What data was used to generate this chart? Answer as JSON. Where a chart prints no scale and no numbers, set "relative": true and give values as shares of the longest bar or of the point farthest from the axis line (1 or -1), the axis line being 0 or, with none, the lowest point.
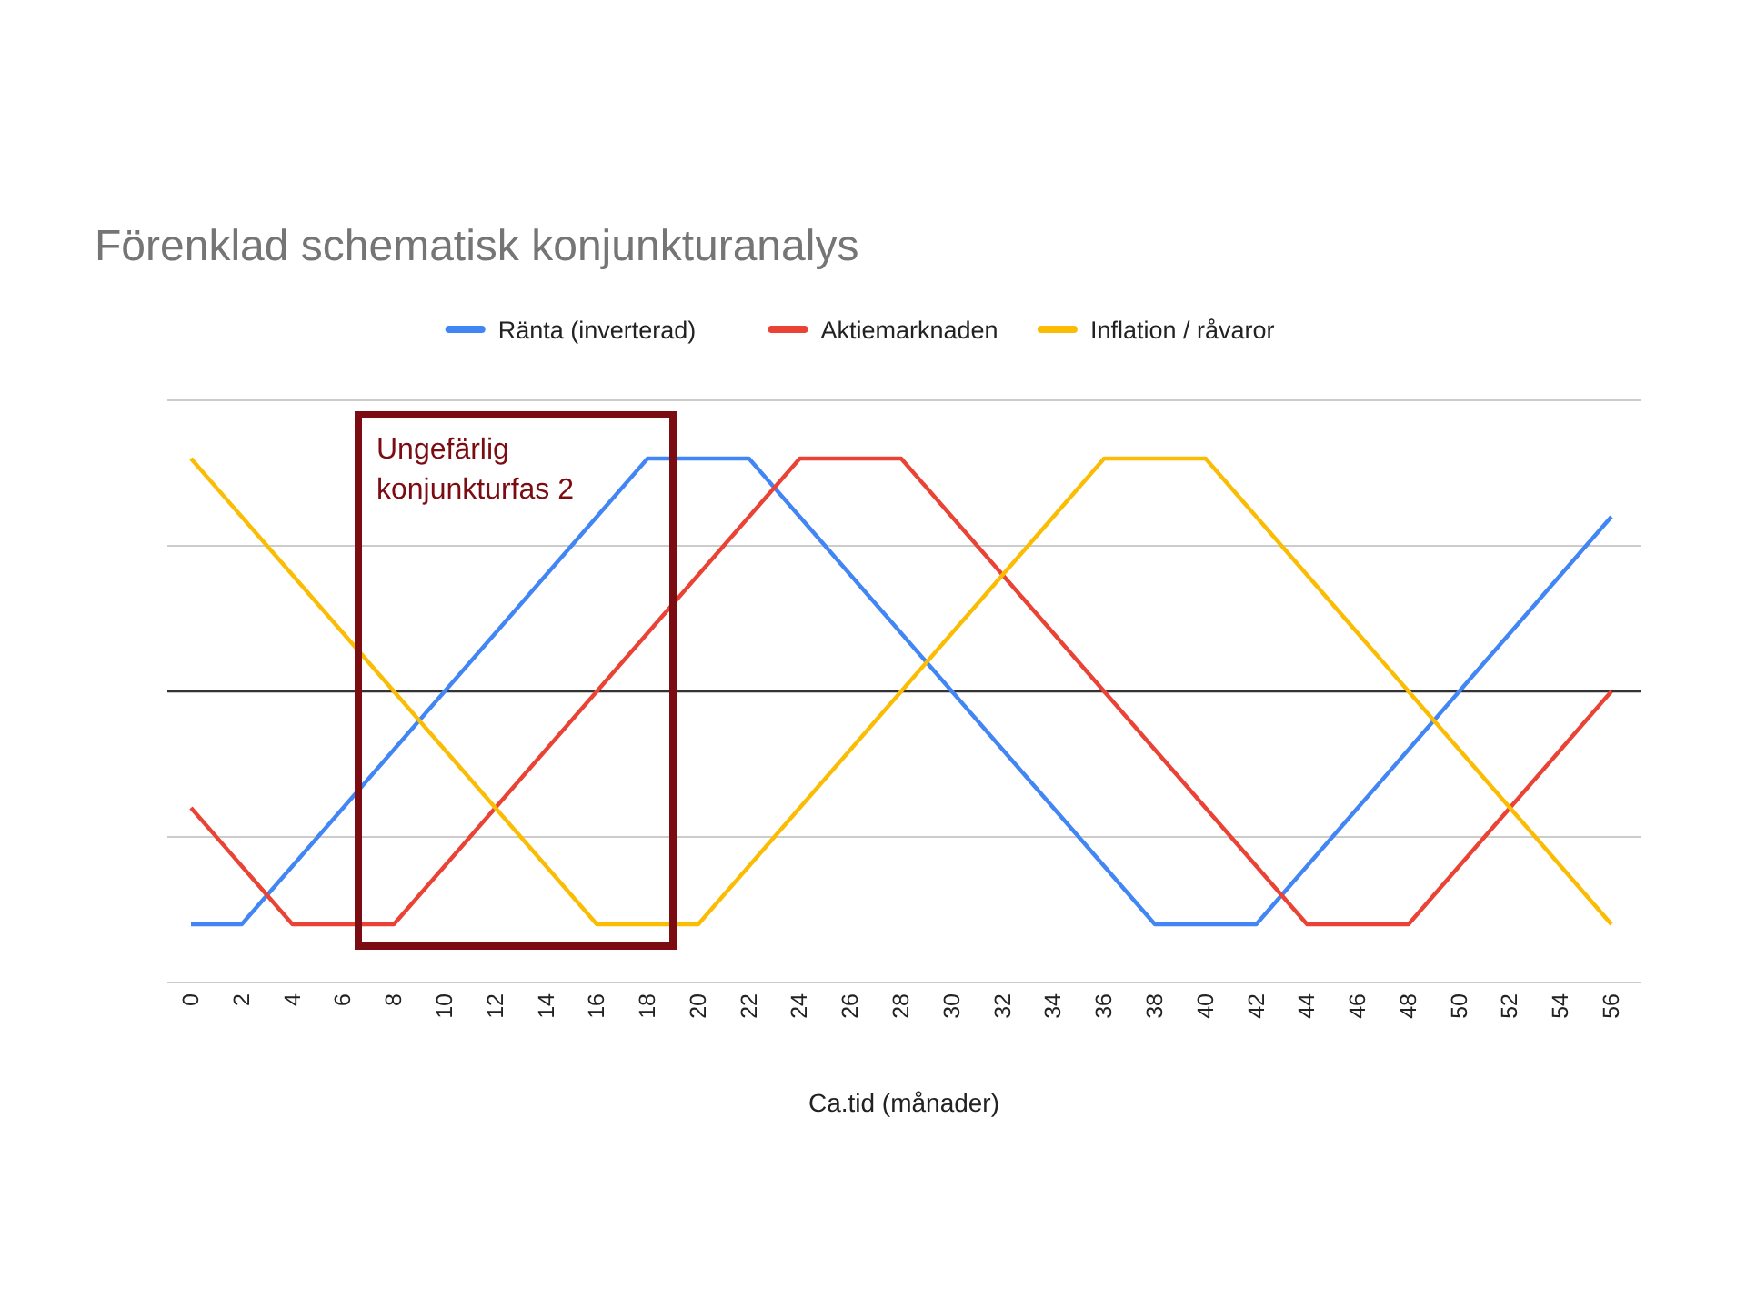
{
  "chart_data": {
    "type": "line",
    "title": "Förenklad schematisk konjunkturanalys",
    "xlabel": "Ca.tid (månader)",
    "relative": true,
    "legend": "top",
    "marker": "none",
    "line_style": "solid",
    "x": [
      0,
      2,
      4,
      6,
      8,
      10,
      12,
      14,
      16,
      18,
      20,
      22,
      24,
      26,
      28,
      30,
      32,
      34,
      36,
      38,
      40,
      42,
      44,
      46,
      48,
      50,
      52,
      54,
      56
    ],
    "xlim": [
      0,
      56
    ],
    "xticks": [
      0,
      2,
      4,
      6,
      8,
      10,
      12,
      14,
      16,
      18,
      20,
      22,
      24,
      26,
      28,
      30,
      32,
      34,
      36,
      38,
      40,
      42,
      44,
      46,
      48,
      50,
      52,
      54,
      56
    ],
    "series": [
      {
        "name": "Ränta (inverterad)",
        "color": "#4285f4",
        "values": [
          -1,
          -1,
          -0.75,
          -0.5,
          -0.25,
          0,
          0.25,
          0.5,
          0.75,
          1,
          1,
          1,
          0.75,
          0.5,
          0.25,
          0,
          -0.25,
          -0.5,
          -0.75,
          -1,
          -1,
          -1,
          -0.75,
          -0.5,
          -0.25,
          0,
          0.25,
          0.5,
          0.75
        ]
      },
      {
        "name": "Aktiemarknaden",
        "color": "#ea4335",
        "values": [
          -0.5,
          -0.75,
          -1,
          -1,
          -1,
          -0.75,
          -0.5,
          -0.25,
          0,
          0.25,
          0.5,
          0.75,
          1,
          1,
          1,
          0.75,
          0.5,
          0.25,
          0,
          -0.25,
          -0.5,
          -0.75,
          -1,
          -1,
          -1,
          -0.75,
          -0.5,
          -0.25,
          0
        ]
      },
      {
        "name": "Inflation / råvaror",
        "color": "#fbbc04",
        "values": [
          1,
          0.75,
          0.5,
          0.25,
          0,
          -0.25,
          -0.5,
          -0.75,
          -1,
          -1,
          -1,
          -0.75,
          -0.5,
          -0.25,
          0,
          0.25,
          0.5,
          0.75,
          1,
          1,
          1,
          0.75,
          0.5,
          0.25,
          0,
          -0.25,
          -0.5,
          -0.75,
          -1
        ]
      }
    ],
    "ref_lines": [
      {
        "axis": "y",
        "value": 1.25,
        "color": "#cccccc"
      },
      {
        "axis": "y",
        "value": 0.625,
        "color": "#cccccc"
      },
      {
        "axis": "y",
        "value": -0.625,
        "color": "#cccccc"
      },
      {
        "axis": "y",
        "value": -1.25,
        "color": "#cccccc"
      }
    ],
    "annotations": [
      "Ungefärlig konjunkturfas 2"
    ]
  }
}
